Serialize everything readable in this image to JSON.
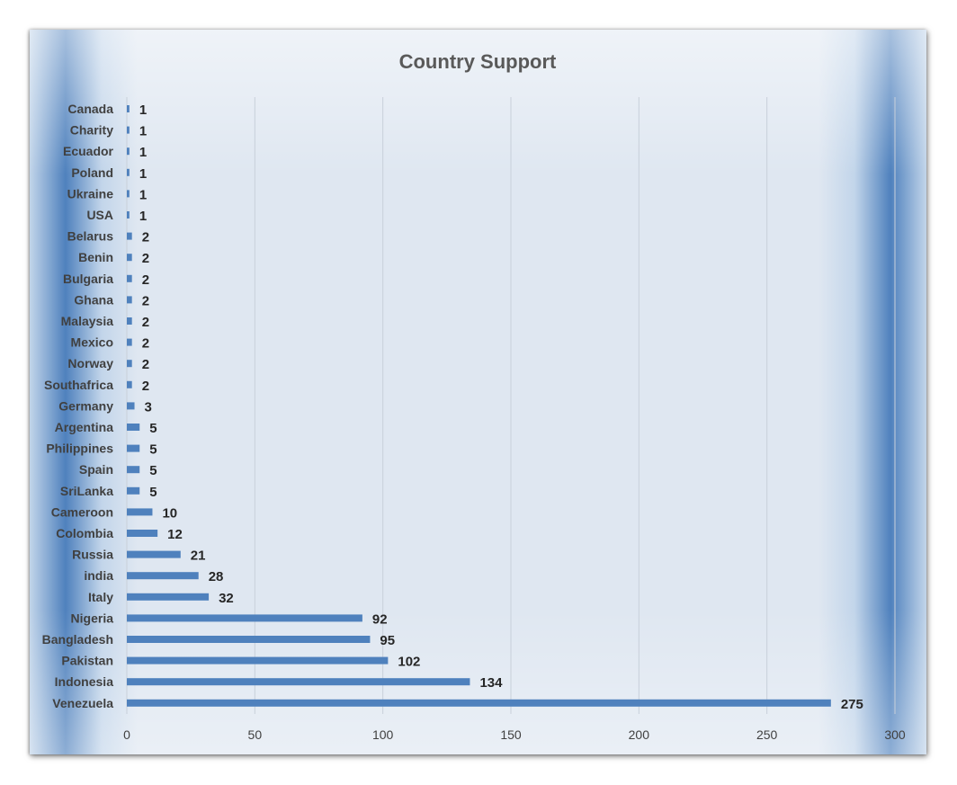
{
  "chart_data": {
    "type": "bar",
    "orientation": "horizontal",
    "title": "Country Support",
    "xlabel": "",
    "ylabel": "",
    "xlim": [
      0,
      300
    ],
    "x_ticks": [
      0,
      50,
      100,
      150,
      200,
      250,
      300
    ],
    "grid": "vertical",
    "legend": "none",
    "bar_color": "#4f81bd",
    "categories": [
      "Canada",
      "Charity",
      "Ecuador",
      "Poland",
      "Ukraine",
      "USA",
      "Belarus",
      "Benin",
      "Bulgaria",
      "Ghana",
      "Malaysia",
      "Mexico",
      "Norway",
      "Southafrica",
      "Germany",
      "Argentina",
      "Philippines",
      "Spain",
      "SriLanka",
      "Cameroon",
      "Colombia",
      "Russia",
      "india",
      "Italy",
      "Nigeria",
      "Bangladesh",
      "Pakistan",
      "Indonesia",
      "Venezuela"
    ],
    "values": [
      1,
      1,
      1,
      1,
      1,
      1,
      2,
      2,
      2,
      2,
      2,
      2,
      2,
      2,
      3,
      5,
      5,
      5,
      5,
      10,
      12,
      21,
      28,
      32,
      92,
      95,
      102,
      134,
      275
    ]
  }
}
